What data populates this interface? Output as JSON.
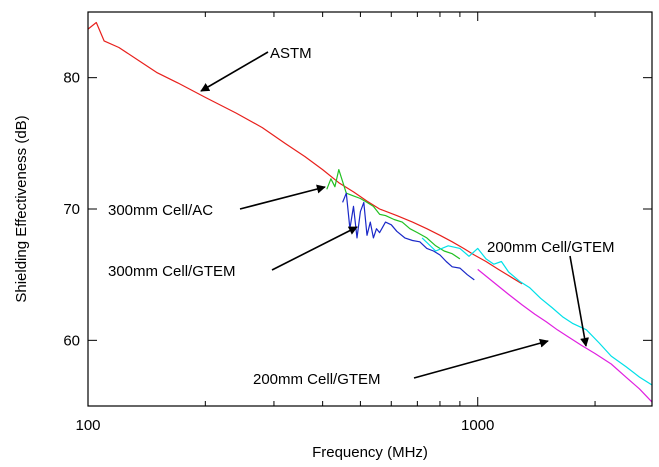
{
  "chart_data": {
    "type": "line",
    "xlabel": "Frequency (MHz)",
    "ylabel": "Shielding Effectiveness (dB)",
    "x_scale": "log",
    "xlim": [
      100,
      2800
    ],
    "ylim": [
      55,
      85
    ],
    "x_ticks": [
      100,
      1000
    ],
    "x_tick_labels": [
      "100",
      "1000"
    ],
    "y_ticks": [
      60,
      70,
      80
    ],
    "y_tick_labels": [
      "60",
      "70",
      "80"
    ],
    "grid": false,
    "legend": "none",
    "series": [
      {
        "color": "#e8201c",
        "x": [
          100,
          105,
          110,
          120,
          135,
          150,
          170,
          200,
          240,
          280,
          320,
          360,
          400,
          440,
          480,
          520,
          560,
          620,
          680,
          740,
          800,
          860,
          920,
          980,
          1050,
          1130,
          1220,
          1300
        ],
        "y": [
          83.7,
          84.2,
          82.8,
          82.3,
          81.3,
          80.4,
          79.6,
          78.5,
          77.3,
          76.2,
          75.0,
          74.0,
          73.0,
          72.0,
          71.3,
          70.6,
          70.0,
          69.5,
          69.0,
          68.5,
          68.0,
          67.5,
          67.0,
          66.5,
          66.0,
          65.4,
          64.8,
          64.3
        ]
      },
      {
        "color": "#22c022",
        "x": [
          410,
          420,
          430,
          440,
          460,
          480,
          500,
          520,
          540,
          560,
          580,
          610,
          640,
          670,
          700,
          740,
          780,
          820,
          860,
          900
        ],
        "y": [
          71.5,
          72.3,
          71.7,
          73.0,
          71.2,
          71.0,
          70.8,
          70.5,
          70.2,
          69.6,
          69.5,
          69.2,
          69.0,
          68.5,
          68.2,
          67.8,
          67.2,
          66.8,
          66.6,
          66.2
        ]
      },
      {
        "color": "#1a28c8",
        "x": [
          450,
          460,
          470,
          480,
          490,
          500,
          510,
          520,
          530,
          540,
          550,
          560,
          580,
          600,
          620,
          650,
          680,
          710,
          740,
          770,
          800,
          830,
          860,
          900,
          940,
          980
        ],
        "y": [
          70.5,
          71.2,
          68.5,
          70.2,
          67.8,
          69.8,
          70.5,
          68.0,
          69.0,
          67.8,
          68.5,
          68.2,
          69.0,
          68.8,
          68.3,
          67.8,
          67.6,
          67.5,
          67.0,
          66.8,
          66.5,
          66.0,
          65.6,
          65.5,
          65.0,
          64.6
        ]
      },
      {
        "color": "#00e0e8",
        "x": [
          720,
          780,
          840,
          900,
          950,
          1000,
          1050,
          1100,
          1150,
          1200,
          1280,
          1360,
          1450,
          1550,
          1650,
          1750,
          1900,
          2050,
          2200,
          2400,
          2600,
          2800
        ],
        "y": [
          67.8,
          66.8,
          67.2,
          67.0,
          66.4,
          67.0,
          66.2,
          65.8,
          66.0,
          65.2,
          64.5,
          64.0,
          63.2,
          62.5,
          61.8,
          61.3,
          60.8,
          59.8,
          58.8,
          58.0,
          57.2,
          56.6
        ]
      },
      {
        "color": "#e020e0",
        "x": [
          1000,
          1100,
          1200,
          1300,
          1400,
          1500,
          1600,
          1700,
          1850,
          2000,
          2200,
          2400,
          2600,
          2800
        ],
        "y": [
          65.4,
          64.4,
          63.5,
          62.7,
          62.0,
          61.4,
          60.8,
          60.3,
          59.6,
          59.0,
          58.2,
          57.2,
          56.3,
          55.3
        ]
      }
    ],
    "annotations": [
      {
        "text": "ASTM",
        "arrow_to": [
          200,
          79
        ]
      },
      {
        "text": "300mm Cell/AC",
        "arrow_to": [
          425,
          72
        ]
      },
      {
        "text": "300mm Cell/GTEM",
        "arrow_to": [
          525,
          68.8
        ]
      },
      {
        "text": "200mm Cell/GTEM",
        "arrow_to": [
          2000,
          59.5
        ]
      },
      {
        "text": "200mm Cell/GTEM",
        "arrow_to": [
          1700,
          60.3
        ]
      }
    ]
  }
}
